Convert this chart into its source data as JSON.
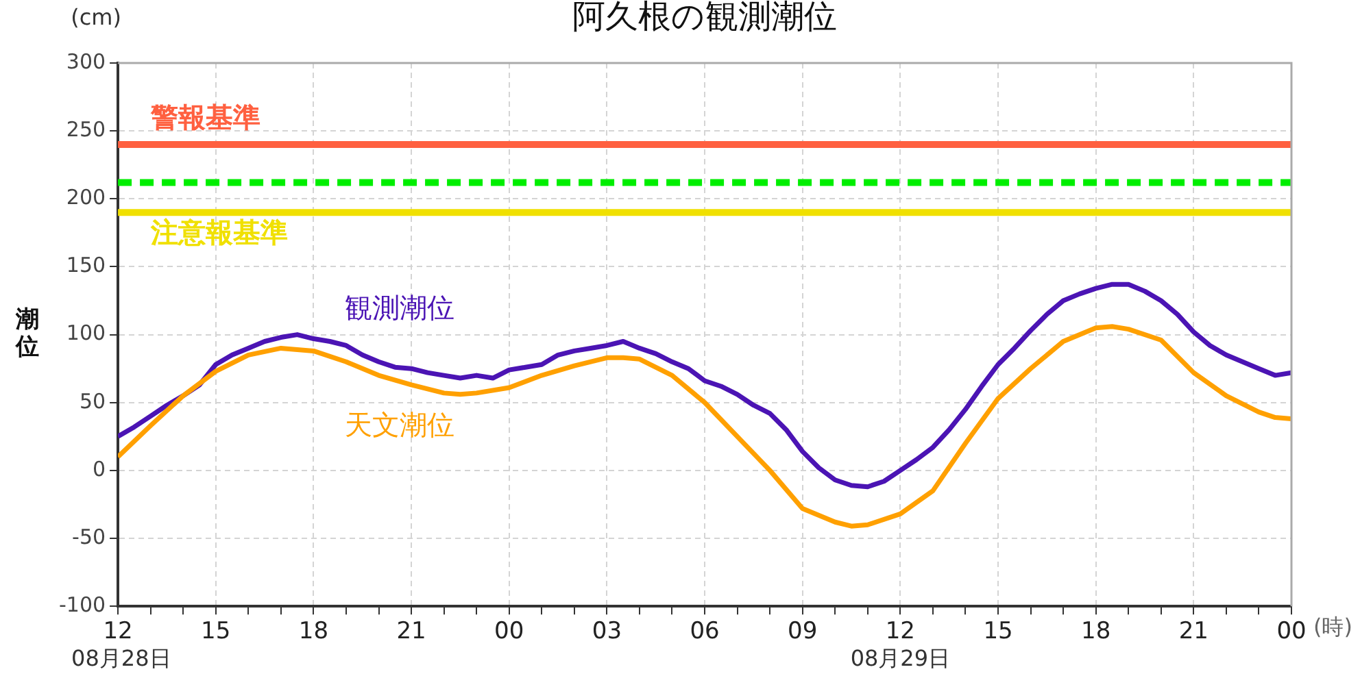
{
  "chart_data": {
    "type": "line",
    "title": "阿久根の観測潮位",
    "ylabel": "潮位",
    "xlabel": "(時)",
    "annotations": [
      "(cm)",
      "08月28日",
      "08月29日"
    ],
    "xlim": [
      12,
      48
    ],
    "xticks": [
      12,
      {
        "value": 13,
        "label": null
      },
      {
        "value": 14,
        "label": null
      },
      15,
      {
        "value": 16,
        "label": null
      },
      {
        "value": 17,
        "label": null
      },
      18,
      {
        "value": 19,
        "label": null
      },
      {
        "value": 20,
        "label": null
      },
      21,
      {
        "value": 22,
        "label": null
      },
      {
        "value": 23,
        "label": null
      },
      {
        "value": 24,
        "label": "00"
      },
      {
        "value": 25,
        "label": null
      },
      {
        "value": 26,
        "label": null
      },
      {
        "value": 27,
        "label": "03"
      },
      {
        "value": 28,
        "label": null
      },
      {
        "value": 29,
        "label": null
      },
      {
        "value": 30,
        "label": "06"
      },
      {
        "value": 31,
        "label": null
      },
      {
        "value": 32,
        "label": null
      },
      {
        "value": 33,
        "label": "09"
      },
      {
        "value": 34,
        "label": null
      },
      {
        "value": 35,
        "label": null
      },
      {
        "value": 36,
        "label": "12"
      },
      {
        "value": 37,
        "label": null
      },
      {
        "value": 38,
        "label": null
      },
      {
        "value": 39,
        "label": "15"
      },
      {
        "value": 40,
        "label": null
      },
      {
        "value": 41,
        "label": null
      },
      {
        "value": 42,
        "label": "18"
      },
      {
        "value": 43,
        "label": null
      },
      {
        "value": 44,
        "label": null
      },
      {
        "value": 45,
        "label": "21"
      },
      {
        "value": 46,
        "label": null
      },
      {
        "value": 47,
        "label": null
      },
      {
        "value": 48,
        "label": "00"
      }
    ],
    "ylim": [
      -100,
      300
    ],
    "yticks": [
      -100,
      -50,
      0,
      50,
      100,
      150,
      200,
      250,
      300
    ],
    "grid": true,
    "legend": false,
    "marker": "none",
    "line_style": "solid",
    "ref_lines": [
      {
        "axis": "y",
        "value": 240,
        "label": "警報基準",
        "color": "#ff6040"
      },
      {
        "axis": "y",
        "value": 212,
        "label": null,
        "color": "#00ee00",
        "line_style": "dashed"
      },
      {
        "axis": "y",
        "value": 190,
        "label": "注意報基準",
        "color": "#f0e000"
      }
    ],
    "series": [
      {
        "name": "観測潮位",
        "color": "#4b14b4",
        "x": [
          12,
          12.5,
          13,
          13.5,
          14,
          14.5,
          15,
          15.5,
          16,
          16.5,
          17,
          17.5,
          18,
          18.5,
          19,
          19.5,
          20,
          20.5,
          21,
          21.5,
          22,
          22.5,
          23,
          23.5,
          24,
          24.5,
          25,
          25.5,
          26,
          26.5,
          27,
          27.5,
          28,
          28.5,
          29,
          29.5,
          30,
          30.5,
          31,
          31.5,
          32,
          32.5,
          33,
          33.5,
          34,
          34.5,
          35,
          35.5,
          36,
          36.5,
          37,
          37.5,
          38,
          38.5,
          39,
          39.5,
          40,
          40.5,
          41,
          41.5,
          42,
          42.5,
          43,
          43.5,
          44,
          44.5,
          45,
          45.5,
          46,
          46.5,
          47,
          47.5,
          48
        ],
        "values": [
          25,
          32,
          40,
          48,
          55,
          63,
          78,
          85,
          90,
          95,
          98,
          100,
          97,
          95,
          92,
          85,
          80,
          76,
          75,
          72,
          70,
          68,
          70,
          68,
          74,
          76,
          78,
          85,
          88,
          90,
          92,
          95,
          90,
          86,
          80,
          75,
          66,
          62,
          56,
          48,
          42,
          30,
          14,
          2,
          -7,
          -11,
          -12,
          -8,
          0,
          8,
          17,
          30,
          45,
          62,
          78,
          90,
          103,
          115,
          125,
          130,
          134,
          137,
          137,
          132,
          125,
          115,
          102,
          92,
          85,
          80,
          75,
          70,
          72
        ]
      },
      {
        "name": "天文潮位",
        "color": "#ffa000",
        "x": [
          12,
          13,
          14,
          15,
          16,
          17,
          18,
          19,
          20,
          21,
          22,
          22.5,
          23,
          24,
          25,
          26,
          27,
          27.5,
          28,
          29,
          30,
          31,
          32,
          33,
          34,
          34.5,
          35,
          36,
          37,
          38,
          39,
          40,
          41,
          42,
          42.5,
          43,
          44,
          45,
          46,
          47,
          47.5,
          48
        ],
        "values": [
          10,
          33,
          55,
          73,
          85,
          90,
          88,
          80,
          70,
          63,
          57,
          56,
          57,
          61,
          70,
          77,
          83,
          83,
          82,
          70,
          50,
          25,
          0,
          -28,
          -38,
          -41,
          -40,
          -32,
          -15,
          20,
          53,
          75,
          95,
          105,
          106,
          104,
          96,
          72,
          55,
          43,
          39,
          38
        ]
      }
    ]
  }
}
